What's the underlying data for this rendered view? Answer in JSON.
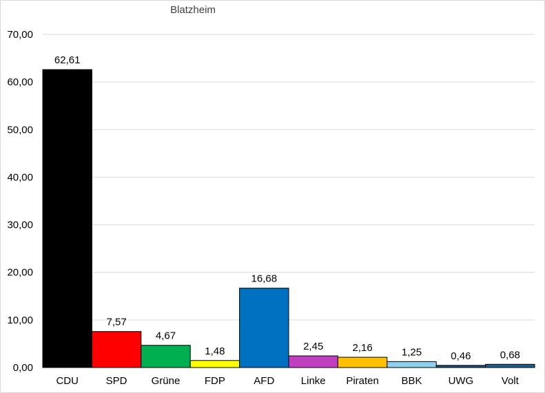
{
  "chart_data": {
    "type": "bar",
    "title": "Blatzheim",
    "categories": [
      "CDU",
      "SPD",
      "Grüne",
      "FDP",
      "AFD",
      "Linke",
      "Piraten",
      "BBK",
      "UWG",
      "Volt"
    ],
    "values": [
      62.61,
      7.57,
      4.67,
      1.48,
      16.68,
      2.45,
      2.16,
      1.25,
      0.46,
      0.68
    ],
    "value_labels": [
      "62,61",
      "7,57",
      "4,67",
      "1,48",
      "16,68",
      "2,45",
      "2,16",
      "1,25",
      "0,46",
      "0,68"
    ],
    "bar_colors": [
      "#000000",
      "#ff0000",
      "#00b050",
      "#ffff00",
      "#0070c0",
      "#bf3fbf",
      "#ffc000",
      "#8fd0f0",
      "#1f4e79",
      "#1f5f8b"
    ],
    "ylim": [
      0,
      70
    ],
    "yticks": [
      0,
      10,
      20,
      30,
      40,
      50,
      60,
      70
    ],
    "ytick_labels": [
      "0,00",
      "10,00",
      "20,00",
      "30,00",
      "40,00",
      "50,00",
      "60,00",
      "70,00"
    ],
    "grid": true,
    "xlabel": "",
    "ylabel": ""
  }
}
